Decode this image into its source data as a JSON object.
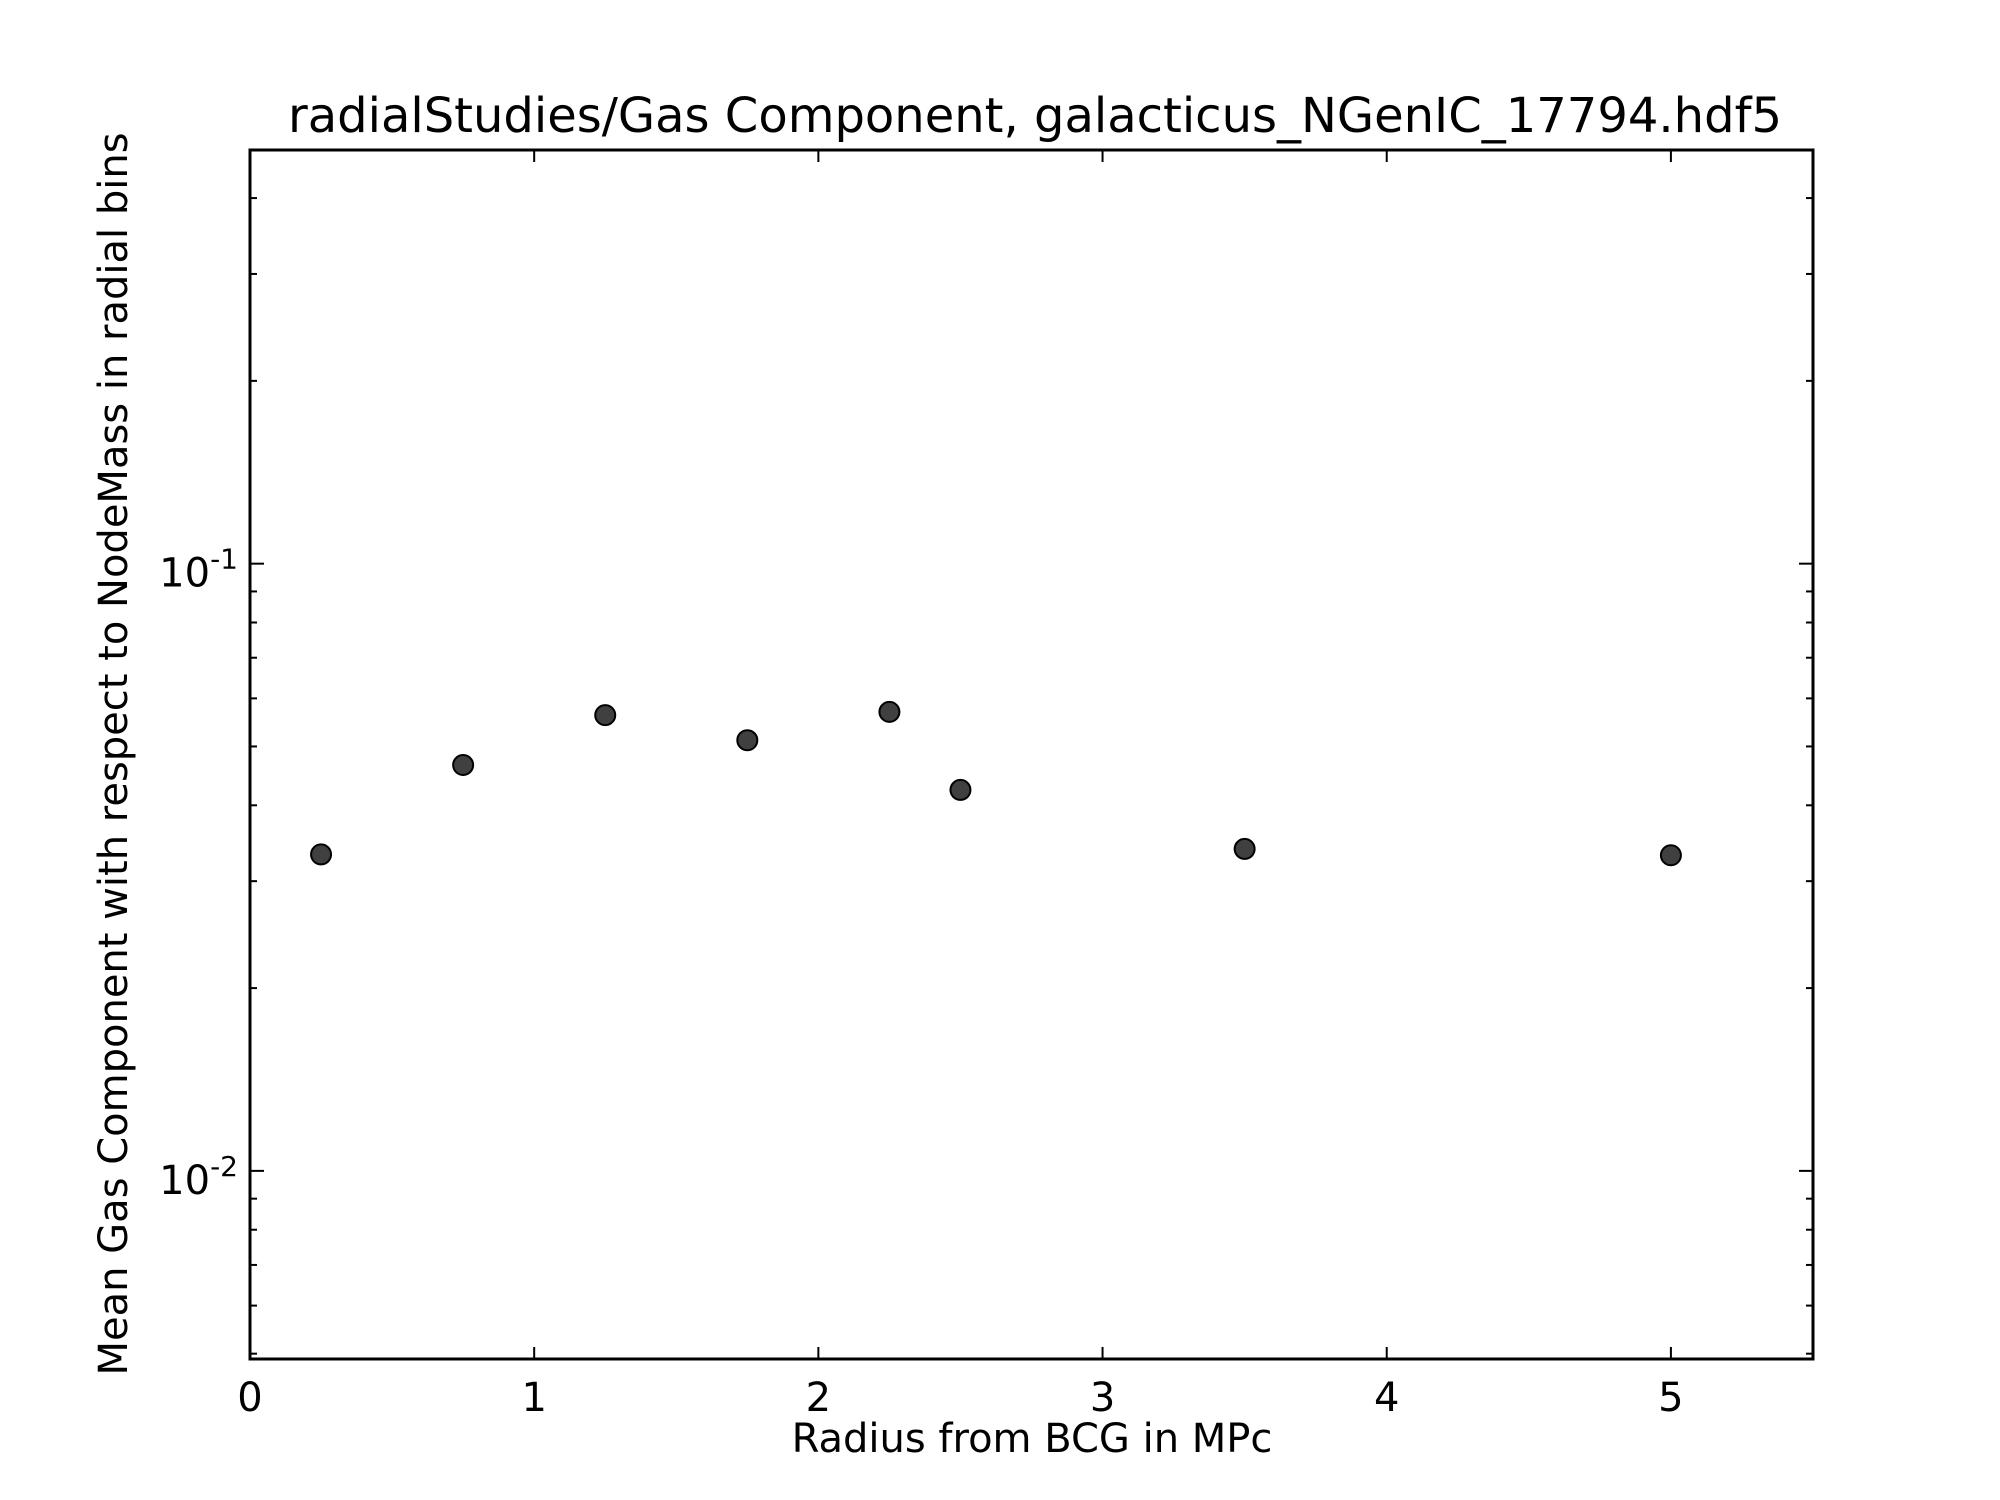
{
  "chart_data": {
    "type": "scatter",
    "title": "radialStudies/Gas Component, galacticus_NGenIC_17794.hdf5",
    "xlabel": "Radius from BCG in MPc",
    "ylabel": "Mean Gas Component with respect to NodeMass in radial bins",
    "xlim": [
      0,
      5.5
    ],
    "ylim": [
      0.0049,
      0.48
    ],
    "yscale": "log",
    "grid": false,
    "x_ticks": [
      {
        "value": 0,
        "label": "0"
      },
      {
        "value": 1,
        "label": "1"
      },
      {
        "value": 2,
        "label": "2"
      },
      {
        "value": 3,
        "label": "3"
      },
      {
        "value": 4,
        "label": "4"
      },
      {
        "value": 5,
        "label": "5"
      }
    ],
    "y_ticks": [
      {
        "value": 0.01,
        "base": "10",
        "exp": "-2"
      },
      {
        "value": 0.1,
        "base": "10",
        "exp": "-1"
      }
    ],
    "marker_color": "#404040",
    "points": [
      {
        "x": 0.25,
        "y": 0.0332
      },
      {
        "x": 0.75,
        "y": 0.0466
      },
      {
        "x": 1.25,
        "y": 0.0563
      },
      {
        "x": 1.75,
        "y": 0.0512
      },
      {
        "x": 2.25,
        "y": 0.057
      },
      {
        "x": 2.5,
        "y": 0.0424
      },
      {
        "x": 3.5,
        "y": 0.0339
      },
      {
        "x": 5.0,
        "y": 0.0331
      }
    ]
  }
}
